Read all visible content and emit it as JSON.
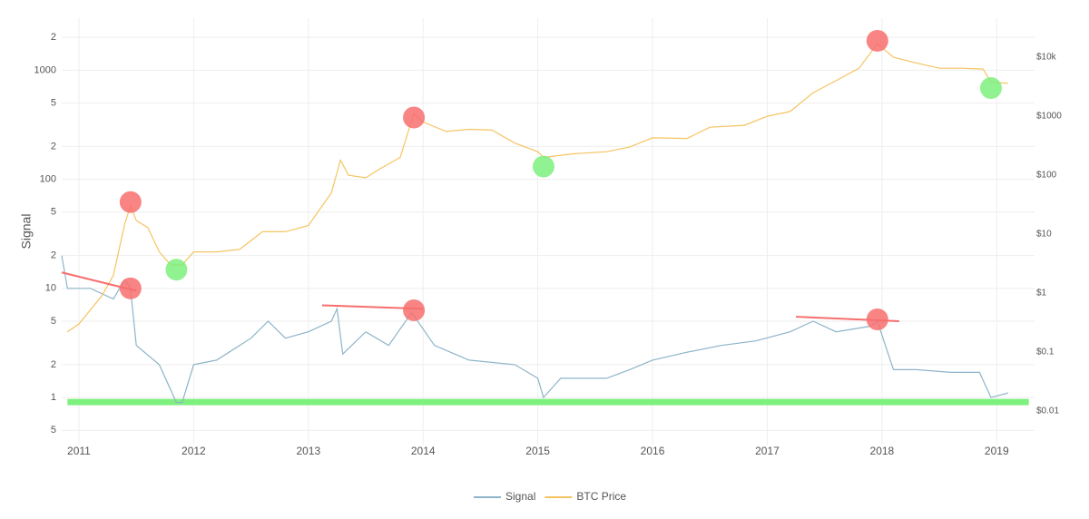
{
  "chart_data": {
    "type": "line",
    "y_label": "Signal",
    "log_y": true,
    "log_y2": true,
    "grid": true,
    "legend": "bottom",
    "xlim": [
      2010.85,
      2019.33
    ],
    "xticks": [
      2011,
      2012,
      2013,
      2014,
      2015,
      2016,
      2017,
      2018,
      2019
    ],
    "ylim": [
      0.37,
      3000
    ],
    "yticks": [
      {
        "value": 2000,
        "label": "2"
      },
      1000,
      {
        "value": 500,
        "label": "5"
      },
      {
        "value": 200,
        "label": "2"
      },
      100,
      {
        "value": 50,
        "label": "5"
      },
      {
        "value": 20,
        "label": "2"
      },
      10,
      5,
      2,
      1,
      {
        "value": 0.5,
        "label": "5"
      }
    ],
    "y2lim": [
      0.0027,
      46000
    ],
    "y2ticks": [
      {
        "value": 10000,
        "label": "$10k"
      },
      {
        "value": 1000,
        "label": "$1000"
      },
      {
        "value": 100,
        "label": "$100"
      },
      {
        "value": 10,
        "label": "$10"
      },
      {
        "value": 1,
        "label": "$1"
      },
      {
        "value": 0.1,
        "label": "$0.1"
      },
      {
        "value": 0.01,
        "label": "$0.01"
      }
    ],
    "series": [
      {
        "name": "Signal",
        "color": "#8db4c9",
        "axis": "y",
        "x": [
          2010.85,
          2010.9,
          2011.1,
          2011.3,
          2011.4,
          2011.45,
          2011.5,
          2011.7,
          2011.85,
          2011.9,
          2012.0,
          2012.2,
          2012.5,
          2012.65,
          2012.8,
          2013.0,
          2013.2,
          2013.25,
          2013.3,
          2013.5,
          2013.7,
          2013.9,
          2014.1,
          2014.4,
          2014.8,
          2015.0,
          2015.05,
          2015.2,
          2015.6,
          2015.8,
          2016.0,
          2016.3,
          2016.6,
          2016.9,
          2017.2,
          2017.4,
          2017.6,
          2017.9,
          2017.96,
          2018.1,
          2018.3,
          2018.6,
          2018.85,
          2018.95,
          2019.1
        ],
        "values": [
          20,
          10,
          10,
          8,
          12,
          10,
          3,
          2,
          0.9,
          0.9,
          2,
          2.2,
          3.5,
          5,
          3.5,
          4,
          5,
          6.5,
          2.5,
          4,
          3,
          6,
          3,
          2.2,
          2,
          1.5,
          1,
          1.5,
          1.5,
          1.8,
          2.2,
          2.6,
          3,
          3.3,
          4,
          5,
          4,
          4.5,
          5,
          1.8,
          1.8,
          1.7,
          1.7,
          1,
          1.1
        ]
      },
      {
        "name": "BTC Price",
        "color": "#f5c462",
        "axis": "y2",
        "x": [
          2010.9,
          2011.0,
          2011.2,
          2011.3,
          2011.4,
          2011.45,
          2011.5,
          2011.6,
          2011.7,
          2011.8,
          2011.9,
          2012.0,
          2012.2,
          2012.4,
          2012.6,
          2012.8,
          2013.0,
          2013.2,
          2013.28,
          2013.35,
          2013.5,
          2013.6,
          2013.8,
          2013.92,
          2014.0,
          2014.2,
          2014.4,
          2014.6,
          2014.8,
          2015.0,
          2015.05,
          2015.3,
          2015.6,
          2015.8,
          2016.0,
          2016.3,
          2016.5,
          2016.8,
          2017.0,
          2017.2,
          2017.4,
          2017.6,
          2017.8,
          2017.96,
          2018.1,
          2018.3,
          2018.5,
          2018.7,
          2018.88,
          2018.95,
          2019.1
        ],
        "values": [
          0.22,
          0.3,
          0.9,
          2,
          15,
          30,
          17,
          13,
          5,
          3,
          3,
          5,
          5,
          5.5,
          11,
          11,
          14,
          50,
          180,
          100,
          90,
          120,
          200,
          1100,
          800,
          550,
          600,
          580,
          350,
          250,
          200,
          230,
          250,
          300,
          430,
          420,
          650,
          700,
          1000,
          1200,
          2500,
          4000,
          6500,
          17000,
          10000,
          8000,
          6500,
          6500,
          6300,
          3800,
          3600
        ]
      }
    ],
    "band": {
      "axis": "y",
      "x": [
        2010.9,
        2019.28
      ],
      "y": [
        0.85,
        0.97
      ],
      "color": "#7ef07e"
    },
    "circles": [
      {
        "axis": "y2",
        "x": 2011.45,
        "y": 35,
        "color": "#f76e6e"
      },
      {
        "axis": "y",
        "x": 2011.45,
        "y": 10,
        "color": "#f76e6e"
      },
      {
        "axis": "y2",
        "x": 2011.85,
        "y": 2.5,
        "color": "#7ef07e"
      },
      {
        "axis": "y2",
        "x": 2013.92,
        "y": 950,
        "color": "#f76e6e"
      },
      {
        "axis": "y",
        "x": 2013.92,
        "y": 6.3,
        "color": "#f76e6e"
      },
      {
        "axis": "y2",
        "x": 2015.05,
        "y": 140,
        "color": "#7ef07e"
      },
      {
        "axis": "y2",
        "x": 2017.96,
        "y": 19000,
        "color": "#f76e6e"
      },
      {
        "axis": "y",
        "x": 2017.96,
        "y": 5.2,
        "color": "#f76e6e"
      },
      {
        "axis": "y2",
        "x": 2018.95,
        "y": 3000,
        "color": "#7ef07e"
      }
    ],
    "trend_lines": [
      {
        "axis": "y",
        "x": [
          2010.85,
          2011.5
        ],
        "y": [
          14,
          9.5
        ],
        "color": "#f76e6e"
      },
      {
        "axis": "y",
        "x": [
          2013.12,
          2014.0
        ],
        "y": [
          7,
          6.5
        ],
        "color": "#f76e6e"
      },
      {
        "axis": "y",
        "x": [
          2017.25,
          2018.15
        ],
        "y": [
          5.5,
          5
        ],
        "color": "#f76e6e"
      }
    ]
  }
}
